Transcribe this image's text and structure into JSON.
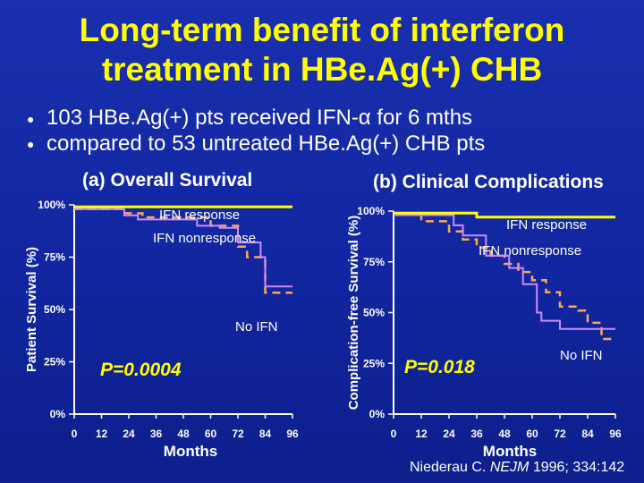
{
  "title": {
    "line1": "Long-term benefit of interferon",
    "line2": "treatment in HBe.Ag(+) CHB"
  },
  "bullets": [
    "103 HBe.Ag(+) pts received IFN-α for 6 mths",
    "compared to 53 untreated HBe.Ag(+) CHB pts"
  ],
  "colors": {
    "background": "#1126a0",
    "title": "#ffff00",
    "pvalue": "#ffff00",
    "ifn_response": "#ffff00",
    "ifn_nonresponse": "#ffa84a",
    "no_ifn": "#c98cff"
  },
  "citation": {
    "author": "Niederau C. ",
    "journal": "NEJM",
    "details": " 1996; 334:142"
  },
  "chart_data": [
    {
      "type": "line",
      "title": "(a) Overall Survival",
      "xlabel": "Months",
      "ylabel": "Patient Survival (%)",
      "xlim": [
        0,
        96
      ],
      "ylim": [
        0,
        100
      ],
      "xticks": [
        "0",
        "12",
        "24",
        "36",
        "48",
        "60",
        "72",
        "84",
        "96"
      ],
      "yticks": [
        "0%",
        "25%",
        "50%",
        "75%",
        "100%"
      ],
      "pvalue": "P=0.0004",
      "series": [
        {
          "name": "IFN response",
          "style": "solid",
          "x": [
            0,
            96
          ],
          "y": [
            99,
            99
          ]
        },
        {
          "name": "IFN nonresponse",
          "style": "dashed",
          "x": [
            0,
            22,
            22,
            30,
            30,
            60,
            60,
            72,
            72,
            76,
            76,
            84,
            84,
            96
          ],
          "y": [
            98,
            98,
            96,
            96,
            94,
            94,
            90,
            90,
            80,
            80,
            75,
            75,
            58,
            58
          ]
        },
        {
          "name": "No IFN",
          "style": "solid",
          "x": [
            0,
            22,
            22,
            28,
            28,
            54,
            54,
            64,
            64,
            72,
            72,
            82,
            82,
            84,
            84,
            96
          ],
          "y": [
            98,
            98,
            95,
            95,
            93,
            93,
            90,
            90,
            89,
            89,
            82,
            82,
            75,
            75,
            61,
            61
          ]
        }
      ],
      "annotations": [
        "IFN response",
        "IFN nonresponse",
        "No IFN"
      ]
    },
    {
      "type": "line",
      "title": "(b) Clinical Complications",
      "xlabel": "Months",
      "ylabel": "Complication-free Survival (%)",
      "xlim": [
        0,
        96
      ],
      "ylim": [
        0,
        100
      ],
      "xticks": [
        "0",
        "12",
        "24",
        "36",
        "48",
        "60",
        "72",
        "84",
        "96"
      ],
      "yticks": [
        "0%",
        "25%",
        "50%",
        "75%",
        "100%"
      ],
      "pvalue": "P=0.018",
      "series": [
        {
          "name": "IFN response",
          "style": "solid",
          "x": [
            0,
            36,
            36,
            96
          ],
          "y": [
            99,
            99,
            97,
            97
          ]
        },
        {
          "name": "IFN nonresponse",
          "style": "dashed",
          "x": [
            0,
            12,
            12,
            24,
            24,
            30,
            30,
            36,
            36,
            42,
            42,
            48,
            48,
            54,
            54,
            60,
            60,
            66,
            66,
            72,
            72,
            80,
            80,
            84,
            84,
            90,
            90,
            96
          ],
          "y": [
            99,
            99,
            95,
            95,
            90,
            90,
            86,
            86,
            82,
            82,
            78,
            78,
            74,
            74,
            70,
            70,
            66,
            66,
            60,
            60,
            53,
            53,
            51,
            51,
            45,
            45,
            37,
            37
          ]
        },
        {
          "name": "No IFN",
          "style": "solid",
          "x": [
            0,
            26,
            26,
            30,
            30,
            40,
            40,
            50,
            50,
            56,
            56,
            62,
            62,
            64,
            64,
            72,
            72,
            96
          ],
          "y": [
            98,
            98,
            93,
            93,
            88,
            88,
            78,
            78,
            72,
            72,
            64,
            64,
            50,
            50,
            46,
            46,
            42,
            42
          ]
        }
      ],
      "annotations": [
        "IFN response",
        "IFN nonresponse",
        "No IFN"
      ]
    }
  ]
}
